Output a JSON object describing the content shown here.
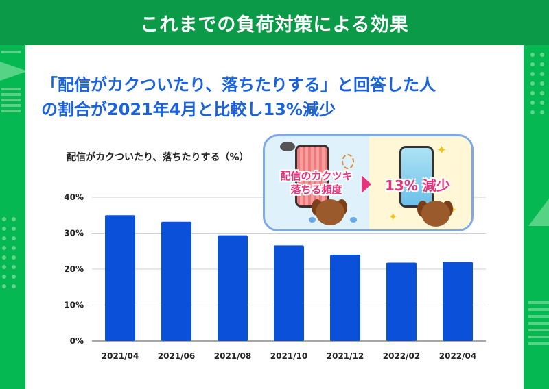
{
  "header": {
    "title": "これまでの負荷対策による効果"
  },
  "headline": {
    "line1": "「配信がカクついたり、落ちたりする」と回答した人",
    "line2": "の割合が2021年4月と比較し13%減少"
  },
  "bubble": {
    "left_text_line1": "配信のカクツキ",
    "left_text_line2": "落ちる頻度",
    "right_text": "13% 減少",
    "left_icon": "phone-glitch-dog-icon",
    "right_icon": "phone-happy-dog-icon",
    "accent_color": "#e8327a"
  },
  "colors": {
    "bar": "#0b50d8",
    "headline": "#1a63e0",
    "header_bg": "#0a9a48",
    "page_bg": "#06b852"
  },
  "chart_data": {
    "type": "bar",
    "title": "",
    "ylabel": "配信がカクついたり、落ちたりする（%）",
    "xlabel": "",
    "categories": [
      "2021/04",
      "2021/06",
      "2021/08",
      "2021/10",
      "2021/12",
      "2022/02",
      "2022/04"
    ],
    "values": [
      35,
      33.2,
      29.4,
      26.6,
      24,
      21.8,
      22
    ],
    "yticks": [
      "0%",
      "10%",
      "20%",
      "30%",
      "40%"
    ],
    "ylim": [
      0,
      40
    ],
    "grid": true
  }
}
